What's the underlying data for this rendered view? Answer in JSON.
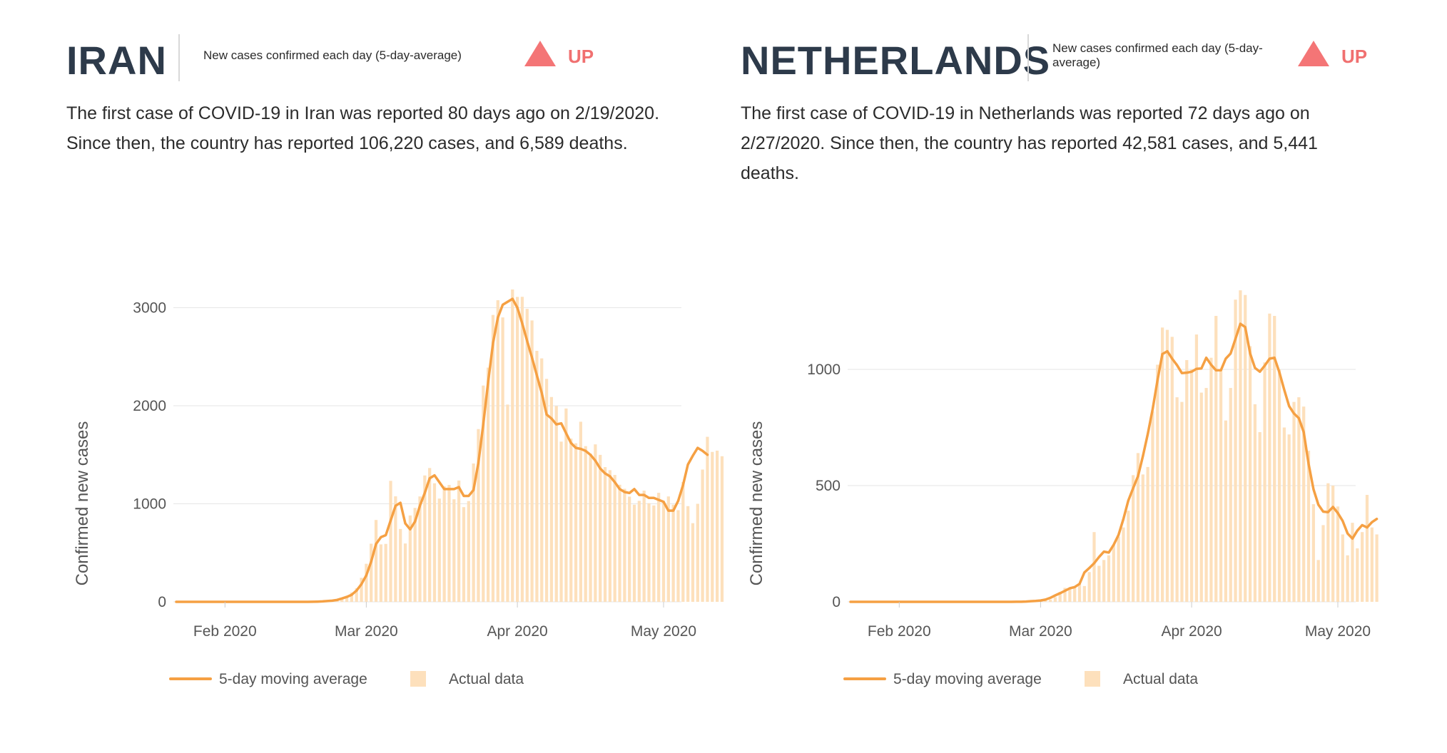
{
  "colors": {
    "line": "#f5a043",
    "bar": "#fde0bc",
    "trend_up": "#f47576",
    "grid": "#e6e6e6",
    "title": "#2d3a4a"
  },
  "panels": [
    {
      "country": "IRAN",
      "metric_label": "New cases confirmed each day (5-day-average)",
      "trend": "UP",
      "trend_icon": "triangle-up-icon",
      "summary": "The first case of COVID-19 in Iran was reported 80 days ago on 2/19/2020. Since then, the country has reported 106,220 cases, and 6,589 deaths."
    },
    {
      "country": "NETHERLANDS",
      "metric_label": "New cases confirmed each day (5-day-average)",
      "trend": "UP",
      "trend_icon": "triangle-up-icon",
      "summary": "The first case of COVID-19 in Netherlands was reported 72 days ago on 2/27/2020. Since then, the country has reported 42,581 cases, and 5,441 deaths."
    }
  ],
  "chart_data": [
    {
      "type": "bar+line",
      "country": "IRAN",
      "ylabel": "Confirmed new cases",
      "xlabel": "",
      "yticks": [
        0,
        1000,
        2000,
        3000
      ],
      "ylim": [
        0,
        3200
      ],
      "x_start": "2020-01-22",
      "xticks": [
        "Feb 2020",
        "Mar 2020",
        "Apr 2020",
        "May 2020"
      ],
      "legend": {
        "placement": "bottom",
        "line_label": "5-day moving average",
        "bar_label": "Actual data"
      },
      "daily_cases": [
        0,
        0,
        0,
        0,
        0,
        0,
        0,
        0,
        0,
        0,
        0,
        0,
        0,
        0,
        0,
        0,
        0,
        0,
        0,
        0,
        0,
        0,
        0,
        0,
        0,
        0,
        0,
        0,
        2,
        3,
        5,
        13,
        15,
        28,
        43,
        61,
        95,
        139,
        245,
        388,
        593,
        835,
        586,
        591,
        1234,
        1076,
        743,
        595,
        881,
        958,
        1075,
        1289,
        1365,
        1209,
        1053,
        1178,
        1192,
        1046,
        1237,
        966,
        1028,
        1411,
        1762,
        2206,
        2389,
        2926,
        3076,
        2901,
        2012,
        3186,
        3110,
        3111,
        2988,
        2870,
        2560,
        2483,
        2274,
        2089,
        1997,
        1634,
        1972,
        1665,
        1617,
        1837,
        1588,
        1512,
        1606,
        1499,
        1374,
        1343,
        1294,
        1194,
        1153,
        1073,
        991,
        1030,
        1134,
        1006,
        983,
        1112,
        1030,
        1075,
        991,
        935,
        1223,
        976,
        802,
        1000,
        1349,
        1683,
        1529,
        1542,
        1485
      ],
      "moving_avg": [
        0,
        0,
        0,
        0,
        0,
        0,
        0,
        0,
        0,
        0,
        0,
        0,
        0,
        0,
        0,
        0,
        0,
        0,
        0,
        0,
        0,
        0,
        0,
        0,
        0,
        0,
        0,
        0,
        1,
        2,
        4,
        8,
        12,
        20,
        34,
        50,
        72,
        115,
        180,
        270,
        410,
        590,
        660,
        680,
        830,
        980,
        1010,
        800,
        740,
        820,
        980,
        1110,
        1260,
        1290,
        1220,
        1150,
        1150,
        1150,
        1170,
        1080,
        1080,
        1140,
        1420,
        1810,
        2240,
        2640,
        2900,
        3030,
        3060,
        3090,
        3000,
        2840,
        2660,
        2490,
        2310,
        2130,
        1910,
        1870,
        1810,
        1820,
        1720,
        1620,
        1570,
        1560,
        1540,
        1500,
        1440,
        1360,
        1310,
        1280,
        1220,
        1150,
        1120,
        1110,
        1150,
        1090,
        1090,
        1060,
        1060,
        1040,
        1020,
        930,
        930,
        1030,
        1190,
        1400,
        1490,
        1570,
        1540,
        1500
      ]
    },
    {
      "type": "bar+line",
      "country": "NETHERLANDS",
      "ylabel": "Confirmed new cases",
      "xlabel": "",
      "yticks": [
        0,
        500,
        1000
      ],
      "ylim": [
        0,
        1350
      ],
      "x_start": "2020-01-22",
      "xticks": [
        "Feb 2020",
        "Mar 2020",
        "Apr 2020",
        "May 2020"
      ],
      "legend": {
        "placement": "bottom",
        "line_label": "5-day moving average",
        "bar_label": "Actual data"
      },
      "daily_cases": [
        0,
        0,
        0,
        0,
        0,
        0,
        0,
        0,
        0,
        0,
        0,
        0,
        0,
        0,
        0,
        0,
        0,
        0,
        0,
        0,
        0,
        0,
        0,
        0,
        0,
        0,
        0,
        0,
        0,
        0,
        0,
        0,
        0,
        0,
        0,
        0,
        1,
        1,
        4,
        8,
        6,
        10,
        20,
        42,
        60,
        54,
        60,
        76,
        68,
        128,
        300,
        155,
        180,
        200,
        245,
        280,
        320,
        392,
        545,
        640,
        548,
        580,
        820,
        1020,
        1180,
        1170,
        1140,
        880,
        860,
        1040,
        1000,
        1150,
        900,
        920,
        1050,
        1230,
        1000,
        780,
        920,
        1300,
        1340,
        1320,
        1100,
        850,
        730,
        1030,
        1240,
        1230,
        1000,
        750,
        720,
        860,
        880,
        840,
        650,
        420,
        180,
        330,
        510,
        500,
        410,
        290,
        200,
        340,
        230,
        300,
        460,
        320,
        290
      ]
    }
  ]
}
